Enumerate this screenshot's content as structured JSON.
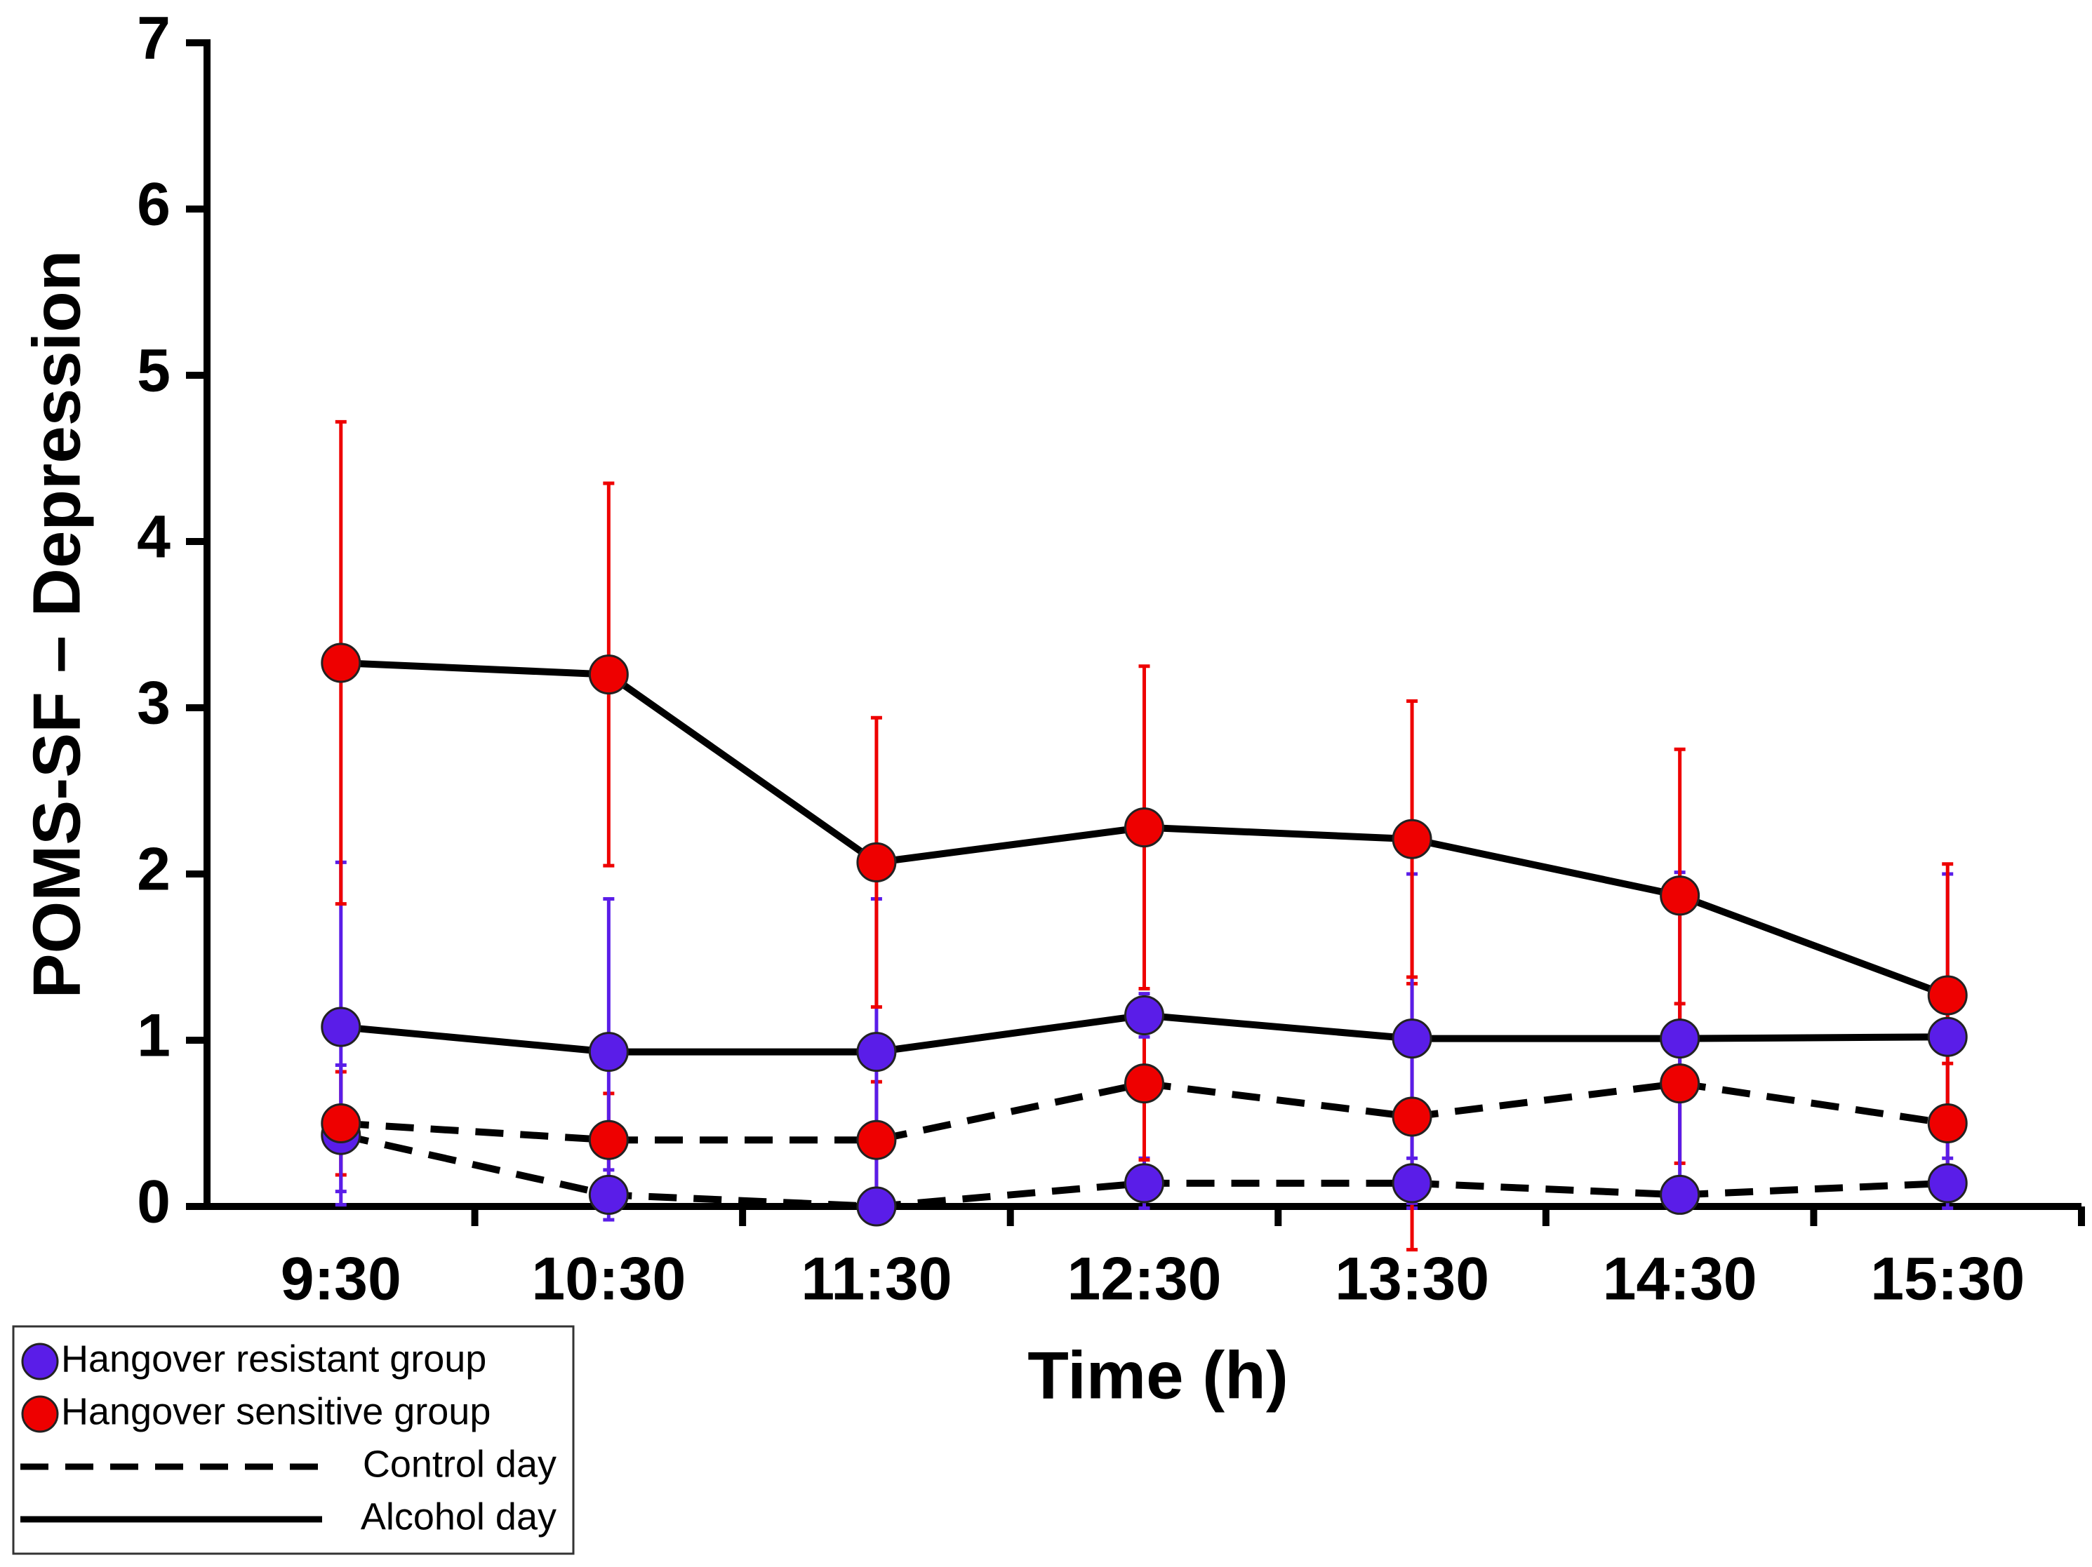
{
  "chart_data": {
    "type": "line",
    "x_label": "Time (h)",
    "y_label": "POMS-SF – Depression",
    "categories": [
      "9:30",
      "10:30",
      "11:30",
      "12:30",
      "13:30",
      "14:30",
      "15:30"
    ],
    "ylim": [
      0,
      7
    ],
    "yticks": [
      0,
      1,
      2,
      3,
      4,
      5,
      6,
      7
    ],
    "series": [
      {
        "color": "#5a1de8",
        "line_style": "dashed",
        "values": [
          0.43,
          0.07,
          0.0,
          0.14,
          0.14,
          0.07,
          0.14
        ],
        "errors": [
          0.42,
          0.15,
          0.1,
          0.15,
          0.15,
          0.1,
          0.15
        ]
      },
      {
        "color": "#ee0000",
        "line_style": "dashed",
        "values": [
          0.5,
          0.4,
          0.4,
          0.74,
          0.54,
          0.74,
          0.5
        ],
        "errors": [
          0.31,
          0.28,
          0.35,
          0.46,
          0.8,
          0.48,
          0.36
        ]
      },
      {
        "color": "#5a1de8",
        "line_style": "solid",
        "values": [
          1.08,
          0.93,
          0.93,
          1.15,
          1.01,
          1.01,
          1.02
        ],
        "errors": [
          0.99,
          0.92,
          0.92,
          0.13,
          0.99,
          1.0,
          0.98
        ]
      },
      {
        "color": "#ee0000",
        "line_style": "solid",
        "values": [
          3.27,
          3.2,
          2.07,
          2.28,
          2.21,
          1.87,
          1.27
        ],
        "errors": [
          1.45,
          1.15,
          0.87,
          0.97,
          0.83,
          0.88,
          0.79
        ]
      }
    ],
    "legend_position": "lower left",
    "legend": [
      {
        "label": "Hangover resistant group",
        "marker_color": "#5a1de8"
      },
      {
        "label": "Hangover sensitive group",
        "marker_color": "#ee0000"
      },
      {
        "label": "Control day",
        "line_style": "dashed"
      },
      {
        "label": "Alcohol day",
        "line_style": "solid"
      }
    ]
  }
}
